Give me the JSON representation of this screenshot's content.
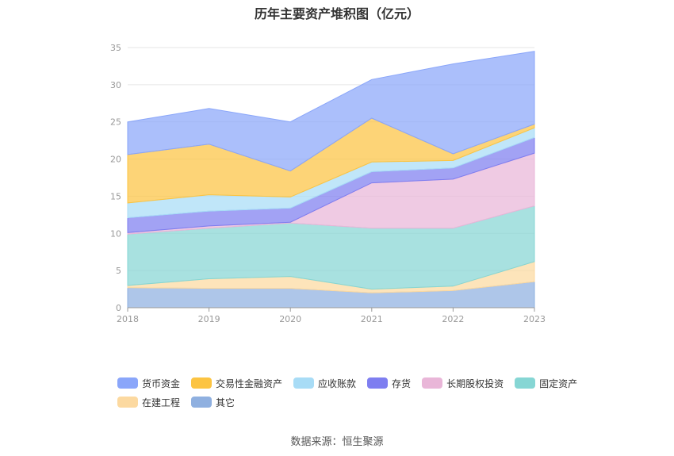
{
  "chart_data": {
    "type": "area",
    "stacked": true,
    "title": "历年主要资产堆积图（亿元）",
    "categories": [
      "2018",
      "2019",
      "2020",
      "2021",
      "2022",
      "2023"
    ],
    "yticks": [
      "0",
      "5",
      "10",
      "15",
      "20",
      "25",
      "30",
      "35"
    ],
    "ylim": [
      0,
      35
    ],
    "grid": true,
    "legend_position": "bottom",
    "series": [
      {
        "name": "其它",
        "color": "#8fb0e0",
        "values": [
          2.7,
          2.6,
          2.6,
          2.0,
          2.3,
          3.5
        ]
      },
      {
        "name": "在建工程",
        "color": "#fcd9a0",
        "values": [
          0.3,
          1.3,
          1.6,
          0.5,
          0.6,
          2.7
        ]
      },
      {
        "name": "固定资产",
        "color": "#86d6d4",
        "values": [
          6.9,
          6.8,
          7.2,
          8.2,
          7.8,
          7.5
        ]
      },
      {
        "name": "长期股权投资",
        "color": "#e9b6d8",
        "values": [
          0.2,
          0.3,
          0.1,
          6.1,
          6.6,
          7.1
        ]
      },
      {
        "name": "存货",
        "color": "#7e7ef0",
        "values": [
          2.0,
          2.0,
          1.9,
          1.5,
          1.5,
          2.1
        ]
      },
      {
        "name": "应收账款",
        "color": "#a8dcf6",
        "values": [
          2.0,
          2.2,
          1.5,
          1.3,
          1.0,
          1.3
        ]
      },
      {
        "name": "交易性金融资产",
        "color": "#fcc442",
        "values": [
          6.5,
          6.8,
          3.5,
          5.9,
          0.9,
          0.5
        ]
      },
      {
        "name": "货币资金",
        "color": "#8aa6fa",
        "values": [
          4.4,
          4.8,
          6.6,
          5.2,
          12.1,
          9.8
        ]
      }
    ]
  },
  "legend": {
    "row1": [
      "货币资金",
      "交易性金融资产",
      "应收账款",
      "存货",
      "长期股权投资",
      "固定资产"
    ],
    "row2": [
      "在建工程",
      "其它"
    ]
  },
  "source": "数据来源：恒生聚源"
}
